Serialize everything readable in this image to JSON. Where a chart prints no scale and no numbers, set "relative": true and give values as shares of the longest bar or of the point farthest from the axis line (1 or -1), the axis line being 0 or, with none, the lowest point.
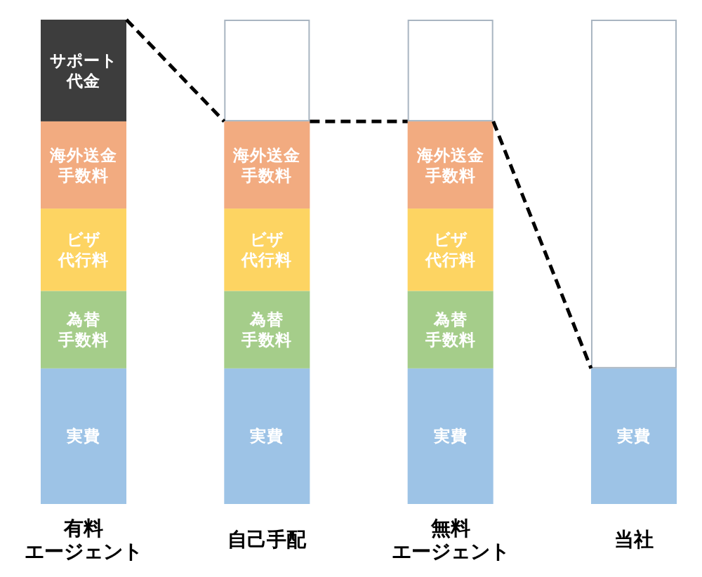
{
  "chart_data": {
    "type": "bar",
    "stacked": true,
    "relative": true,
    "line_style": "dashed",
    "categories": [
      "有料エージェント",
      "自己手配",
      "無料エージェント",
      "当社"
    ],
    "series": [
      {
        "name": "実費",
        "color": "#9dc3e6",
        "values": [
          0.28,
          0.28,
          0.28,
          0.28
        ]
      },
      {
        "name": "為替手数料",
        "color": "#a5cd8a",
        "values": [
          0.16,
          0.16,
          0.16,
          null
        ]
      },
      {
        "name": "ビザ代行料",
        "color": "#fdd462",
        "values": [
          0.17,
          0.17,
          0.17,
          null
        ]
      },
      {
        "name": "海外送金手数料",
        "color": "#f2ab80",
        "values": [
          0.18,
          0.18,
          0.18,
          null
        ]
      },
      {
        "name": "サポート代金",
        "color": "#3d3d3d",
        "values": [
          0.21,
          null,
          null,
          null
        ]
      },
      {
        "color": "#ffffff",
        "values": [
          null,
          0.21,
          0.21,
          0.72
        ]
      }
    ]
  }
}
